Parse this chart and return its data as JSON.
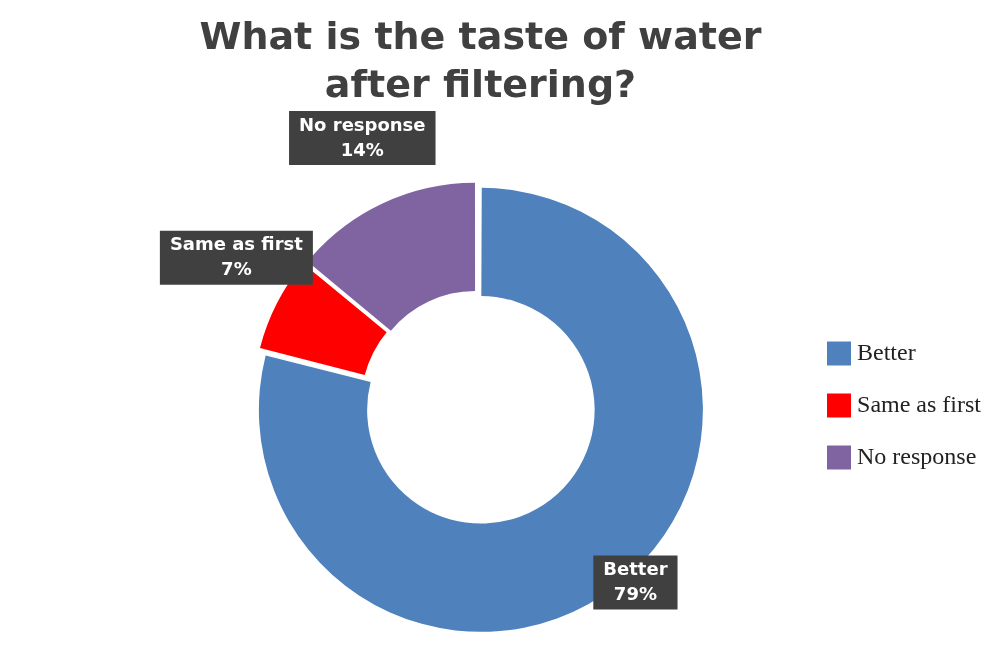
{
  "chart_data": {
    "type": "donut",
    "title": "What is the taste of water after filtering?",
    "categories": [
      "Better",
      "Same as first",
      "No response"
    ],
    "values": [
      79,
      7,
      14
    ],
    "colors": [
      "#4f81bd",
      "#ff0000",
      "#8064a2"
    ],
    "value_labels": [
      "79%",
      "7%",
      "14%"
    ],
    "legend": "right"
  }
}
